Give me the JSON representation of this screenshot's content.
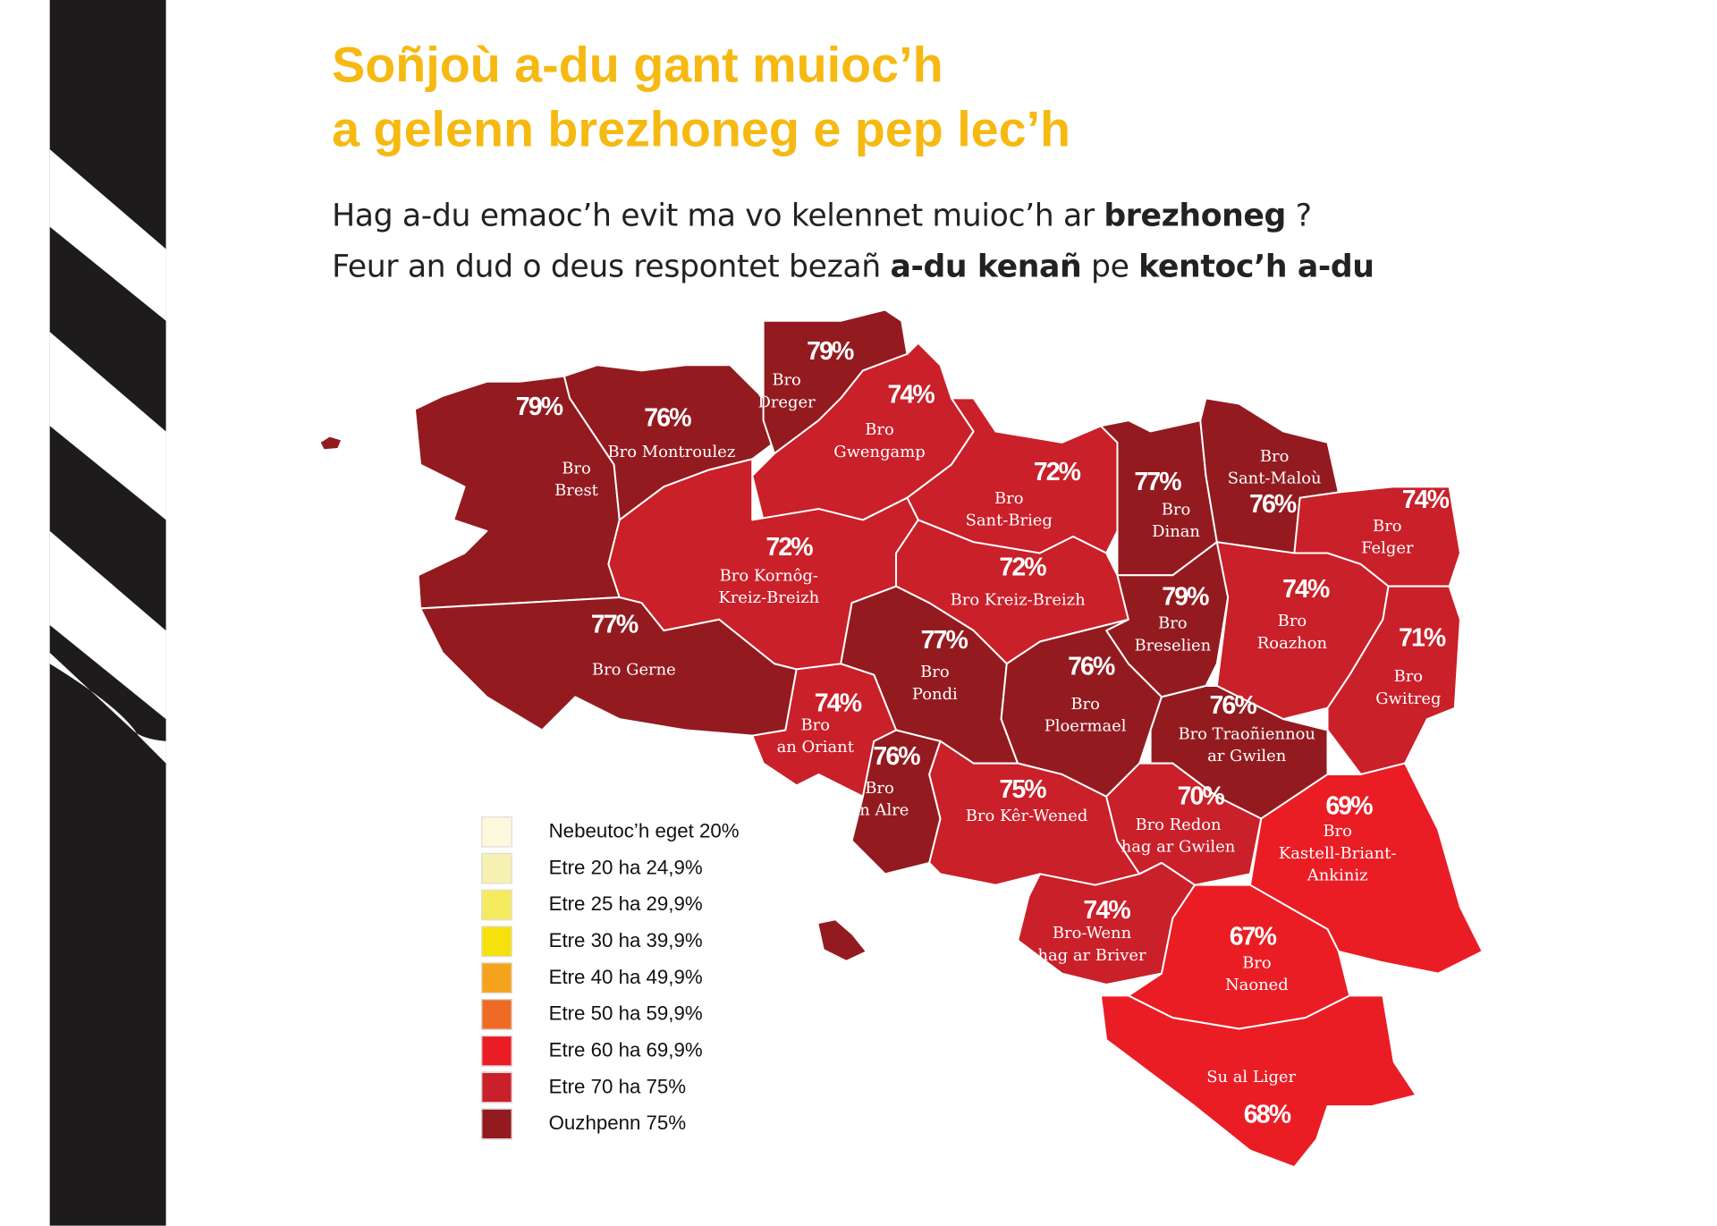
{
  "title": {
    "line1": "Soñjoù a-du gant muioc’h",
    "line2": "a gelenn brezhoneg e pep lec’h"
  },
  "subtitle": {
    "line1": {
      "text": "Hag a-du emaoc’h evit ma vo kelennet muioc’h ar ",
      "bold": "brezhoneg",
      "end": " ?"
    },
    "line2": {
      "text": "Feur an dud o deus respontet bezañ ",
      "bold1": "a-du kenañ",
      "mid": " pe ",
      "bold2": "kentoc’h a-du"
    }
  },
  "colors": {
    "title": "#f6b912",
    "over75": "#931b20",
    "70to75": "#c9202a",
    "60to69": "#ea1d25"
  },
  "legend": [
    {
      "label": "Nebeutoc’h eget 20%",
      "color": "#fcf8dc"
    },
    {
      "label": "Etre 20 ha 24,9%",
      "color": "#f6f1b0"
    },
    {
      "label": "Etre 25 ha 29,9%",
      "color": "#f5ea60"
    },
    {
      "label": "Etre 30 ha 39,9%",
      "color": "#f7e10d"
    },
    {
      "label": "Etre 40 ha 49,9%",
      "color": "#f5a21d"
    },
    {
      "label": "Etre 50 ha 59,9%",
      "color": "#ef6b25"
    },
    {
      "label": "Etre 60 ha 69,9%",
      "color": "#ea1d25"
    },
    {
      "label": "Etre 70 ha 75%",
      "color": "#c9202a"
    },
    {
      "label": "Ouzhpenn 75%",
      "color": "#931b20"
    }
  ],
  "regions": [
    {
      "name": [
        "Bro",
        "Brest"
      ],
      "value": "79%"
    },
    {
      "name": [
        "Bro Montroulez"
      ],
      "value": "76%"
    },
    {
      "name": [
        "Bro",
        "Dreger"
      ],
      "value": "79%"
    },
    {
      "name": [
        "Bro",
        "Gwengamp"
      ],
      "value": "74%"
    },
    {
      "name": [
        "Bro",
        "Sant-Brieg"
      ],
      "value": "72%"
    },
    {
      "name": [
        "Bro",
        "Dinan"
      ],
      "value": "77%"
    },
    {
      "name": [
        "Bro",
        "Sant-Maloù"
      ],
      "value": "76%"
    },
    {
      "name": [
        "Bro",
        "Felger"
      ],
      "value": "74%"
    },
    {
      "name": [
        "Bro Kornôg-",
        "Kreiz-Breizh"
      ],
      "value": "72%"
    },
    {
      "name": [
        "Bro Kreiz-Breizh"
      ],
      "value": "72%"
    },
    {
      "name": [
        "Bro",
        "Breselien"
      ],
      "value": "79%"
    },
    {
      "name": [
        "Bro",
        "Roazhon"
      ],
      "value": "74%"
    },
    {
      "name": [
        "Bro",
        "Gwitreg"
      ],
      "value": "71%"
    },
    {
      "name": [
        "Bro Gerne"
      ],
      "value": "77%"
    },
    {
      "name": [
        "Bro",
        "Pondi"
      ],
      "value": "77%"
    },
    {
      "name": [
        "Bro",
        "Ploermael"
      ],
      "value": "76%"
    },
    {
      "name": [
        "Bro",
        "an Oriant"
      ],
      "value": "74%"
    },
    {
      "name": [
        "Bro",
        "an Alre"
      ],
      "value": "76%"
    },
    {
      "name": [
        "Bro Kêr-Wened"
      ],
      "value": "75%"
    },
    {
      "name": [
        "Bro Traoñiennou",
        "ar Gwilen"
      ],
      "value": "76%"
    },
    {
      "name": [
        "Bro Redon",
        "hag ar Gwilen"
      ],
      "value": "70%"
    },
    {
      "name": [
        "Bro",
        "Kastell-Briant-",
        "Ankiniz"
      ],
      "value": "69%"
    },
    {
      "name": [
        "Bro-Wenn",
        "hag ar Briver"
      ],
      "value": "74%"
    },
    {
      "name": [
        "Bro",
        "Naoned"
      ],
      "value": "67%"
    },
    {
      "name": [
        "Su al Liger"
      ],
      "value": "68%"
    }
  ]
}
